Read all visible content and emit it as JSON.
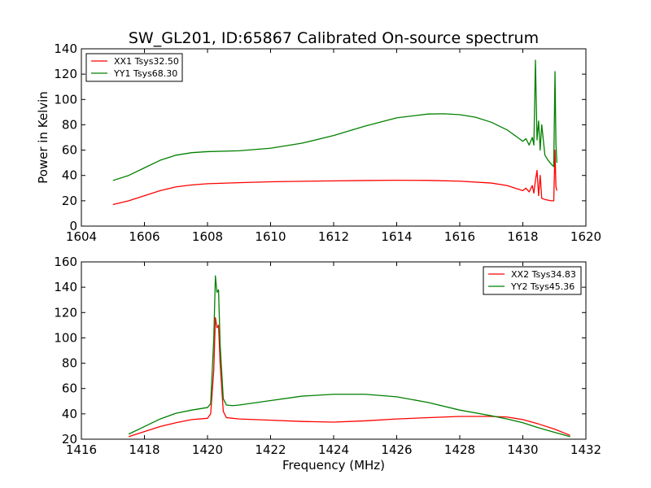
{
  "title": "SW_GL201, ID:65867 Calibrated On-source spectrum",
  "chart_data": [
    {
      "type": "line",
      "title": "SW_GL201, ID:65867 Calibrated On-source spectrum",
      "xlabel": "",
      "ylabel": "Power in Kelvin",
      "xlim": [
        1604,
        1620
      ],
      "ylim": [
        0,
        140
      ],
      "xticks": [
        "1604",
        "1606",
        "1608",
        "1610",
        "1612",
        "1614",
        "1616",
        "1618",
        "1620"
      ],
      "yticks": [
        "0",
        "20",
        "40",
        "60",
        "80",
        "100",
        "120",
        "140"
      ],
      "legend_position": "top-left",
      "grid": false,
      "series": [
        {
          "name": "XX1 Tsys32.50",
          "color": "#ff0000",
          "x": [
            1605.0,
            1605.5,
            1606.0,
            1606.5,
            1607.0,
            1607.5,
            1608.0,
            1609.0,
            1610.0,
            1611.0,
            1612.0,
            1613.0,
            1614.0,
            1615.0,
            1616.0,
            1617.0,
            1617.5,
            1618.0,
            1618.1,
            1618.2,
            1618.3,
            1618.35,
            1618.4,
            1618.45,
            1618.5,
            1618.55,
            1618.6,
            1618.7,
            1618.8,
            1618.9,
            1618.98,
            1619.02,
            1619.05,
            1619.08
          ],
          "y": [
            17,
            20,
            24,
            28,
            31,
            32.5,
            33.5,
            34.3,
            35,
            35.4,
            35.7,
            36,
            36.2,
            36.1,
            35.5,
            34,
            32,
            28,
            30,
            27,
            32,
            26,
            36,
            44,
            24,
            40,
            22,
            21,
            20.5,
            20,
            20,
            60,
            31,
            28
          ]
        },
        {
          "name": "YY1 Tsys68.30",
          "color": "#008000",
          "x": [
            1605.0,
            1605.5,
            1606.0,
            1606.5,
            1607.0,
            1607.5,
            1608.0,
            1609.0,
            1610.0,
            1611.0,
            1612.0,
            1613.0,
            1614.0,
            1615.0,
            1615.5,
            1616.0,
            1616.5,
            1617.0,
            1617.5,
            1618.0,
            1618.1,
            1618.2,
            1618.3,
            1618.35,
            1618.4,
            1618.45,
            1618.5,
            1618.55,
            1618.6,
            1618.7,
            1618.8,
            1618.9,
            1618.98,
            1619.02,
            1619.05,
            1619.08
          ],
          "y": [
            36,
            40,
            46,
            52,
            56,
            58,
            58.8,
            59.5,
            61.5,
            65.5,
            71.5,
            79,
            85.5,
            88.5,
            88.7,
            88,
            86,
            82,
            76,
            67,
            69,
            64,
            70,
            64,
            131,
            68,
            83,
            60,
            80,
            56,
            52,
            49,
            47,
            122,
            65,
            50
          ]
        }
      ]
    },
    {
      "type": "line",
      "title": "",
      "xlabel": "Frequency (MHz)",
      "ylabel": "",
      "xlim": [
        1416,
        1432
      ],
      "ylim": [
        20,
        160
      ],
      "xticks": [
        "1416",
        "1418",
        "1420",
        "1422",
        "1424",
        "1426",
        "1428",
        "1430",
        "1432"
      ],
      "yticks": [
        "20",
        "40",
        "60",
        "80",
        "100",
        "120",
        "140",
        "160"
      ],
      "legend_position": "top-right",
      "grid": false,
      "series": [
        {
          "name": "XX2 Tsys34.83",
          "color": "#ff0000",
          "x": [
            1417.5,
            1418.0,
            1418.5,
            1419.0,
            1419.5,
            1420.0,
            1420.1,
            1420.2,
            1420.25,
            1420.3,
            1420.35,
            1420.4,
            1420.5,
            1420.6,
            1420.8,
            1421.0,
            1422.0,
            1423.0,
            1424.0,
            1425.0,
            1426.0,
            1427.0,
            1428.0,
            1429.0,
            1429.5,
            1430.0,
            1430.5,
            1431.0,
            1431.5
          ],
          "y": [
            22,
            26,
            30,
            33,
            35.5,
            36.5,
            40,
            75,
            116,
            108,
            110,
            80,
            42,
            37,
            36.5,
            36,
            35,
            34,
            33.5,
            34.5,
            36,
            37,
            38,
            38,
            37.5,
            35.5,
            32,
            28,
            23
          ]
        },
        {
          "name": "YY2 Tsys45.36",
          "color": "#008000",
          "x": [
            1417.5,
            1418.0,
            1418.5,
            1419.0,
            1419.5,
            1420.0,
            1420.1,
            1420.2,
            1420.25,
            1420.3,
            1420.35,
            1420.4,
            1420.5,
            1420.6,
            1420.8,
            1421.0,
            1422.0,
            1423.0,
            1424.0,
            1425.0,
            1426.0,
            1427.0,
            1428.0,
            1429.0,
            1429.5,
            1430.0,
            1430.5,
            1431.0,
            1431.5
          ],
          "y": [
            24,
            30,
            36,
            40.5,
            43,
            45,
            48,
            100,
            149,
            136,
            138,
            95,
            52,
            47,
            46.5,
            47,
            50.5,
            54,
            55.5,
            55.5,
            53.5,
            49,
            43,
            38.5,
            36,
            33,
            29,
            25.5,
            22
          ]
        }
      ]
    }
  ]
}
